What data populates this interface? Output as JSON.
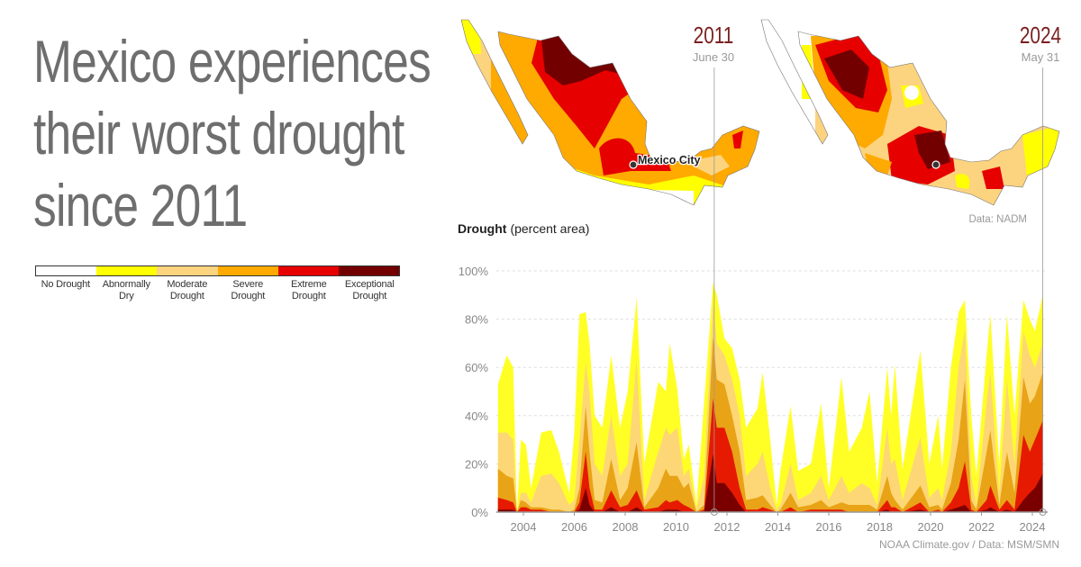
{
  "title": "Mexico experiences their worst drought since 2011",
  "legend": [
    {
      "label": "No Drought",
      "color": "#ffffff"
    },
    {
      "label": "Abnormally Dry",
      "color": "#ffff00"
    },
    {
      "label": "Moderate Drought",
      "color": "#fcd37f"
    },
    {
      "label": "Severe Drought",
      "color": "#ffaa00"
    },
    {
      "label": "Extreme Drought",
      "color": "#e60000"
    },
    {
      "label": "Exceptional Drought",
      "color": "#730000"
    }
  ],
  "maps": [
    {
      "year": "2011",
      "date": "June 30",
      "city_label": "Mexico City"
    },
    {
      "year": "2024",
      "date": "May 31",
      "source": "Data: NADM"
    }
  ],
  "chart_data": {
    "type": "area",
    "stacking": "cumulative (each series = percent area in that category or worse)",
    "title_bold": "Drought",
    "title_rest": "(percent area)",
    "ylim": [
      0,
      100
    ],
    "yticks": [
      "0%",
      "20%",
      "40%",
      "60%",
      "80%",
      "100%"
    ],
    "ytick_values": [
      0,
      20,
      40,
      60,
      80,
      100
    ],
    "xticks": [
      "2004",
      "2006",
      "2008",
      "2010",
      "2012",
      "2014",
      "2016",
      "2018",
      "2020",
      "2022",
      "2024"
    ],
    "xlim": [
      2002.93,
      2024.6
    ],
    "grid": "horizontal dashed",
    "markers": [
      2011.5,
      2024.41
    ],
    "credit": "NOAA Climate.gov / Data: MSM/SMN",
    "x": [
      2003.0,
      2003.35,
      2003.6,
      2003.75,
      2003.9,
      2004.1,
      2004.3,
      2004.7,
      2005.1,
      2005.4,
      2005.8,
      2006.0,
      2006.2,
      2006.45,
      2006.6,
      2006.8,
      2007.1,
      2007.45,
      2007.8,
      2008.1,
      2008.45,
      2008.75,
      2009.3,
      2009.6,
      2009.75,
      2010.05,
      2010.3,
      2010.5,
      2010.8,
      2011.1,
      2011.45,
      2011.6,
      2011.9,
      2012.2,
      2012.5,
      2012.75,
      2013.2,
      2013.4,
      2013.7,
      2013.95,
      2014.1,
      2014.5,
      2014.8,
      2015.3,
      2015.7,
      2016.0,
      2016.5,
      2016.8,
      2017.3,
      2017.6,
      2017.9,
      2018.3,
      2018.45,
      2018.6,
      2018.9,
      2019.6,
      2019.95,
      2020.3,
      2020.45,
      2020.8,
      2021.1,
      2021.35,
      2021.6,
      2021.8,
      2022.2,
      2022.35,
      2022.7,
      2023.0,
      2023.3,
      2023.65,
      2023.9,
      2024.1,
      2024.41
    ],
    "series": [
      {
        "name": "Abnormally Dry",
        "color": "#ffff26",
        "values": [
          53,
          65,
          60,
          0,
          30,
          28,
          10,
          33,
          34,
          25,
          8,
          33,
          82,
          83,
          70,
          40,
          35,
          65,
          35,
          50,
          89,
          20,
          54,
          50,
          70,
          51,
          22,
          28,
          3,
          45,
          95,
          90,
          72,
          68,
          55,
          35,
          43,
          58,
          30,
          3,
          17,
          44,
          17,
          20,
          45,
          10,
          56,
          25,
          35,
          50,
          12,
          60,
          40,
          61,
          18,
          67,
          20,
          40,
          18,
          60,
          83,
          88,
          40,
          15,
          65,
          82,
          20,
          82,
          40,
          88,
          80,
          75,
          90
        ]
      },
      {
        "name": "Moderate Drought",
        "color": "#fdd775",
        "values": [
          33,
          33,
          30,
          0,
          8,
          8,
          4,
          15,
          16,
          12,
          3,
          5,
          30,
          62,
          50,
          20,
          15,
          40,
          15,
          20,
          63,
          5,
          25,
          35,
          32,
          35,
          15,
          18,
          1,
          15,
          87,
          70,
          65,
          55,
          40,
          15,
          20,
          25,
          10,
          1,
          3,
          20,
          5,
          8,
          15,
          5,
          15,
          8,
          12,
          10,
          3,
          35,
          20,
          22,
          5,
          31,
          6,
          10,
          5,
          25,
          60,
          76,
          15,
          3,
          45,
          58,
          8,
          55,
          20,
          75,
          65,
          60,
          70
        ]
      },
      {
        "name": "Severe Drought",
        "color": "#e8a317",
        "values": [
          18,
          15,
          14,
          0,
          5,
          4,
          2,
          2,
          1,
          1,
          0,
          1,
          10,
          44,
          25,
          5,
          4,
          22,
          5,
          10,
          29,
          2,
          10,
          18,
          15,
          15,
          10,
          12,
          0,
          3,
          73,
          55,
          53,
          40,
          25,
          5,
          6,
          7,
          3,
          0,
          1,
          8,
          2,
          3,
          5,
          2,
          4,
          3,
          3,
          3,
          1,
          15,
          8,
          5,
          1,
          11,
          2,
          3,
          1,
          12,
          30,
          55,
          5,
          1,
          25,
          34,
          3,
          25,
          8,
          56,
          45,
          48,
          58
        ]
      },
      {
        "name": "Extreme Drought",
        "color": "#e61a00",
        "values": [
          6,
          5,
          4,
          0,
          2,
          2,
          1,
          1,
          0,
          0,
          0,
          0,
          4,
          25,
          10,
          1,
          1,
          9,
          2,
          3,
          9,
          1,
          2,
          5,
          4,
          5,
          3,
          2,
          0,
          1,
          47,
          35,
          35,
          25,
          10,
          1,
          1,
          2,
          1,
          0,
          0,
          2,
          0,
          1,
          1,
          1,
          1,
          0,
          0,
          0,
          0,
          5,
          2,
          2,
          0,
          4,
          0,
          1,
          0,
          4,
          10,
          21,
          1,
          0,
          5,
          11,
          1,
          5,
          1,
          32,
          25,
          30,
          38
        ]
      },
      {
        "name": "Exceptional Drought",
        "color": "#7a0000",
        "values": [
          1,
          1,
          1,
          0,
          0,
          0,
          0,
          0,
          0,
          0,
          0,
          0,
          1,
          10,
          3,
          0,
          0,
          2,
          0,
          0,
          2,
          0,
          0,
          1,
          1,
          1,
          0,
          0,
          0,
          0,
          24,
          12,
          12,
          8,
          3,
          0,
          0,
          0,
          0,
          0,
          0,
          0,
          0,
          0,
          0,
          0,
          0,
          0,
          0,
          0,
          0,
          1,
          0,
          0,
          0,
          1,
          0,
          0,
          0,
          1,
          2,
          3,
          0,
          0,
          1,
          2,
          0,
          1,
          0,
          5,
          8,
          10,
          16
        ]
      }
    ]
  }
}
